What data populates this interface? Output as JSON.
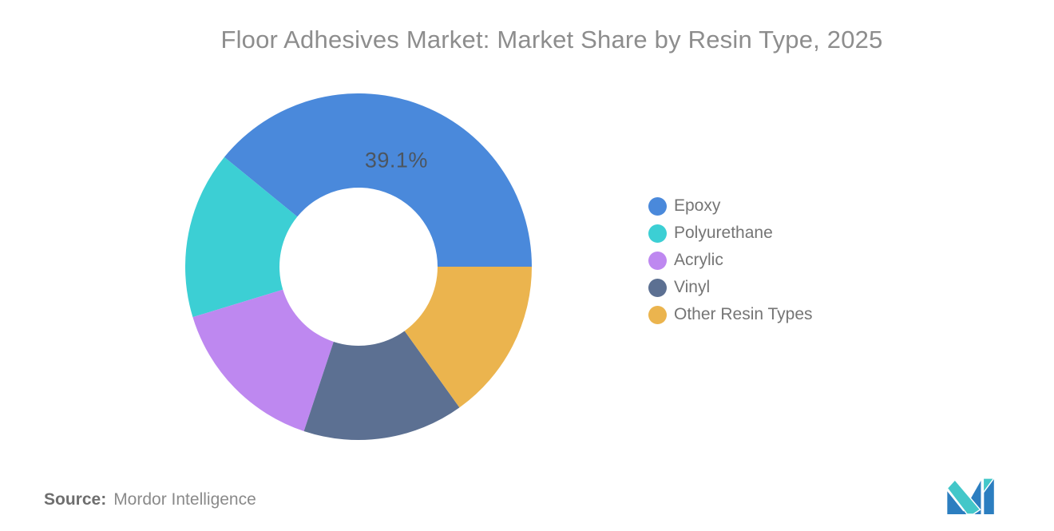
{
  "title": "Floor Adhesives Market: Market Share by Resin Type, 2025",
  "chart_data": {
    "type": "pie",
    "subtype": "donut",
    "title": "Floor Adhesives Market: Market Share by Resin Type, 2025",
    "unit": "%",
    "categories": [
      "Epoxy",
      "Polyurethane",
      "Acrylic",
      "Vinyl",
      "Other Resin Types"
    ],
    "values": [
      39.1,
      15.6,
      15.2,
      15.0,
      15.1
    ],
    "displayed_labels": [
      "39.1%",
      "",
      "",
      "",
      ""
    ],
    "colors": [
      "#4A89DB",
      "#3CCFD4",
      "#BE88F0",
      "#5C7092",
      "#EBB44E"
    ],
    "legend_position": "right",
    "label_color": "#4C555F"
  },
  "source": {
    "label": "Source:",
    "text": "Mordor Intelligence"
  },
  "logo": {
    "name": "mordor-intelligence-logo",
    "blue": "#2C7EC0",
    "teal": "#43C7C9"
  }
}
